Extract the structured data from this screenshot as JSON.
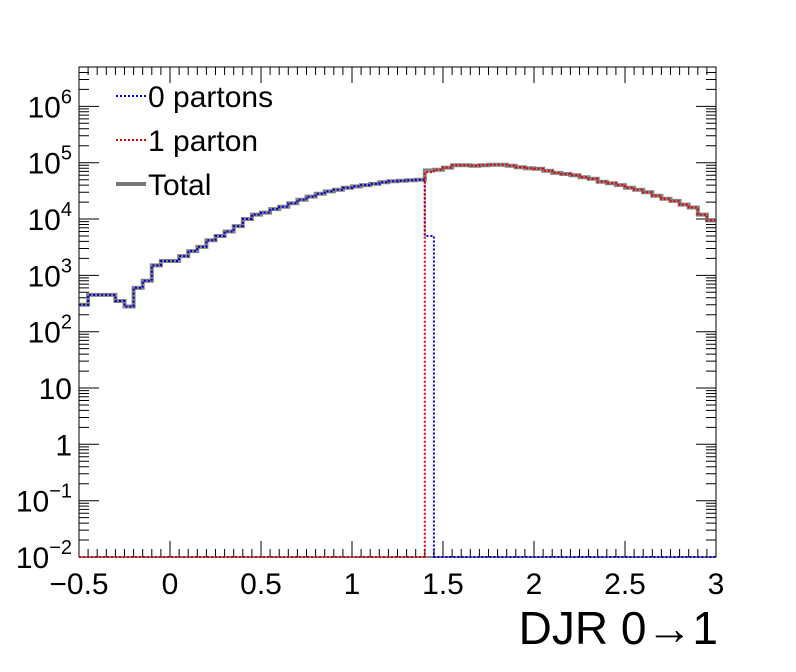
{
  "chart_data": {
    "type": "line",
    "xlabel": "DJR 0→1",
    "xlim": [
      -0.5,
      3.0
    ],
    "ylim": [
      0.01,
      5000000
    ],
    "yscale": "log",
    "grid": false,
    "legend_position": "top-left",
    "x_ticks": [
      {
        "v": -0.5,
        "label": "−0.5"
      },
      {
        "v": 0,
        "label": "0"
      },
      {
        "v": 0.5,
        "label": "0.5"
      },
      {
        "v": 1,
        "label": "1"
      },
      {
        "v": 1.5,
        "label": "1.5"
      },
      {
        "v": 2,
        "label": "2"
      },
      {
        "v": 2.5,
        "label": "2.5"
      },
      {
        "v": 3,
        "label": "3"
      }
    ],
    "y_ticks": [
      {
        "v": 0.01,
        "base": "10",
        "exp": "−2"
      },
      {
        "v": 0.1,
        "base": "10",
        "exp": "−1"
      },
      {
        "v": 1,
        "base": "1",
        "exp": ""
      },
      {
        "v": 10,
        "base": "10",
        "exp": ""
      },
      {
        "v": 100,
        "base": "10",
        "exp": "2"
      },
      {
        "v": 1000,
        "base": "10",
        "exp": "3"
      },
      {
        "v": 10000,
        "base": "10",
        "exp": "4"
      },
      {
        "v": 100000,
        "base": "10",
        "exp": "5"
      },
      {
        "v": 1000000,
        "base": "10",
        "exp": "6"
      }
    ],
    "bin_edges": [
      -0.5,
      -0.45,
      -0.4,
      -0.35,
      -0.3,
      -0.25,
      -0.2,
      -0.15,
      -0.1,
      -0.05,
      0.0,
      0.05,
      0.1,
      0.15,
      0.2,
      0.25,
      0.3,
      0.35,
      0.4,
      0.45,
      0.5,
      0.55,
      0.6,
      0.65,
      0.7,
      0.75,
      0.8,
      0.85,
      0.9,
      0.95,
      1.0,
      1.05,
      1.1,
      1.15,
      1.2,
      1.25,
      1.3,
      1.35,
      1.4,
      1.45,
      1.5,
      1.55,
      1.6,
      1.65,
      1.7,
      1.75,
      1.8,
      1.85,
      1.9,
      1.95,
      2.0,
      2.05,
      2.1,
      2.15,
      2.2,
      2.25,
      2.3,
      2.35,
      2.4,
      2.45,
      2.5,
      2.55,
      2.6,
      2.65,
      2.7,
      2.75,
      2.8,
      2.85,
      2.9,
      2.95,
      3.0
    ],
    "series": [
      {
        "name": "0 partons",
        "color": "#0000cc",
        "style": "dotted",
        "values": [
          300,
          450,
          450,
          450,
          350,
          280,
          600,
          800,
          1500,
          1800,
          1800,
          2200,
          2700,
          3200,
          4200,
          5000,
          6000,
          7500,
          10000,
          12000,
          13000,
          15000,
          16500,
          19000,
          22000,
          25000,
          28000,
          31000,
          33000,
          36000,
          38000,
          40000,
          42000,
          45000,
          47000,
          48000,
          49000,
          50000,
          5000,
          0.01,
          0.01,
          0.01,
          0.01,
          0.01,
          0.01,
          0.01,
          0.01,
          0.01,
          0.01,
          0.01,
          0.01,
          0.01,
          0.01,
          0.01,
          0.01,
          0.01,
          0.01,
          0.01,
          0.01,
          0.01,
          0.01,
          0.01,
          0.01,
          0.01,
          0.01,
          0.01,
          0.01,
          0.01,
          0.01,
          0.01
        ]
      },
      {
        "name": "1 parton",
        "color": "#dd0000",
        "style": "dotted",
        "values": [
          0.01,
          0.01,
          0.01,
          0.01,
          0.01,
          0.01,
          0.01,
          0.01,
          0.01,
          0.01,
          0.01,
          0.01,
          0.01,
          0.01,
          0.01,
          0.01,
          0.01,
          0.01,
          0.01,
          0.01,
          0.01,
          0.01,
          0.01,
          0.01,
          0.01,
          0.01,
          0.01,
          0.01,
          0.01,
          0.01,
          0.01,
          0.01,
          0.01,
          0.01,
          0.01,
          0.01,
          0.01,
          0.01,
          68000,
          75000,
          82000,
          90000,
          90000,
          88000,
          90000,
          92000,
          92000,
          88000,
          83000,
          80000,
          78000,
          72000,
          66000,
          63000,
          60000,
          55000,
          52000,
          46000,
          43000,
          40000,
          36000,
          33000,
          30000,
          26000,
          23000,
          21000,
          18000,
          16000,
          12000,
          9500
        ]
      },
      {
        "name": "Total",
        "color": "#777777",
        "style": "solid",
        "values": [
          300,
          450,
          450,
          450,
          350,
          280,
          600,
          800,
          1500,
          1800,
          1800,
          2200,
          2700,
          3200,
          4200,
          5000,
          6000,
          7500,
          10000,
          12000,
          13000,
          15000,
          16500,
          19000,
          22000,
          25000,
          28000,
          31000,
          33000,
          36000,
          38000,
          40000,
          42000,
          45000,
          47000,
          48000,
          49000,
          50000,
          73000,
          75000,
          82000,
          90000,
          90000,
          88000,
          90000,
          92000,
          92000,
          88000,
          83000,
          80000,
          78000,
          72000,
          66000,
          63000,
          60000,
          55000,
          52000,
          46000,
          43000,
          40000,
          36000,
          33000,
          30000,
          26000,
          23000,
          21000,
          18000,
          16000,
          12000,
          9500
        ]
      }
    ]
  }
}
